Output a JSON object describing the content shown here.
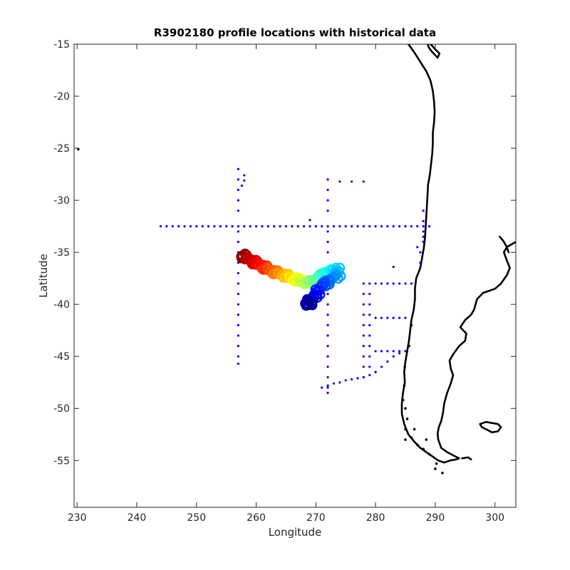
{
  "chart_data": {
    "type": "scatter",
    "title": "R3902180 profile locations with historical data",
    "xlabel": "Longitude",
    "ylabel": "Latitude",
    "xlim": [
      229.5,
      303.5
    ],
    "ylim": [
      -59.5,
      -15
    ],
    "xticks": [
      230,
      240,
      250,
      260,
      270,
      280,
      290,
      300
    ],
    "yticks": [
      -15,
      -20,
      -25,
      -30,
      -35,
      -40,
      -45,
      -50,
      -55
    ],
    "grid": false,
    "colors": {
      "historical": "#0000ff",
      "coast": "#000000",
      "axes": "#262626"
    },
    "historical_points": [
      [
        244,
        -32.5
      ],
      [
        245,
        -32.5
      ],
      [
        246,
        -32.5
      ],
      [
        247,
        -32.5
      ],
      [
        248,
        -32.5
      ],
      [
        249,
        -32.5
      ],
      [
        250,
        -32.5
      ],
      [
        251,
        -32.5
      ],
      [
        252,
        -32.5
      ],
      [
        253,
        -32.5
      ],
      [
        254,
        -32.5
      ],
      [
        255,
        -32.5
      ],
      [
        256,
        -32.5
      ],
      [
        257,
        -32.5
      ],
      [
        258,
        -32.5
      ],
      [
        259,
        -32.5
      ],
      [
        260,
        -32.5
      ],
      [
        261,
        -32.5
      ],
      [
        262,
        -32.5
      ],
      [
        263,
        -32.5
      ],
      [
        264,
        -32.5
      ],
      [
        265,
        -32.5
      ],
      [
        266,
        -32.5
      ],
      [
        267,
        -32.5
      ],
      [
        268,
        -32.5
      ],
      [
        269,
        -32.5
      ],
      [
        270,
        -32.5
      ],
      [
        271,
        -32.5
      ],
      [
        272,
        -32.5
      ],
      [
        273,
        -32.5
      ],
      [
        274,
        -32.5
      ],
      [
        275,
        -32.5
      ],
      [
        276,
        -32.5
      ],
      [
        277,
        -32.5
      ],
      [
        278,
        -32.5
      ],
      [
        279,
        -32.5
      ],
      [
        280,
        -32.5
      ],
      [
        281,
        -32.5
      ],
      [
        282,
        -32.5
      ],
      [
        283,
        -32.5
      ],
      [
        284,
        -32.5
      ],
      [
        285,
        -32.5
      ],
      [
        286,
        -32.5
      ],
      [
        287,
        -32.5
      ],
      [
        288,
        -32.5
      ],
      [
        289,
        -32.5
      ],
      [
        257,
        -27
      ],
      [
        257,
        -28
      ],
      [
        257,
        -29
      ],
      [
        257,
        -30
      ],
      [
        257,
        -31
      ],
      [
        257,
        -33
      ],
      [
        257,
        -34
      ],
      [
        257,
        -35
      ],
      [
        257,
        -36
      ],
      [
        257,
        -37
      ],
      [
        257,
        -38
      ],
      [
        257,
        -39
      ],
      [
        257,
        -40
      ],
      [
        257,
        -41
      ],
      [
        257,
        -42
      ],
      [
        257,
        -43
      ],
      [
        257,
        -44
      ],
      [
        257,
        -45
      ],
      [
        257,
        -45.7
      ],
      [
        258,
        -27.6
      ],
      [
        258,
        -28.1
      ],
      [
        257.6,
        -28.6
      ],
      [
        269,
        -31.9
      ],
      [
        272,
        -28
      ],
      [
        272,
        -29
      ],
      [
        272,
        -30
      ],
      [
        272,
        -31
      ],
      [
        272,
        -33
      ],
      [
        272,
        -34
      ],
      [
        272,
        -35
      ],
      [
        272,
        -38
      ],
      [
        272,
        -39
      ],
      [
        272,
        -40
      ],
      [
        272,
        -41
      ],
      [
        272,
        -42
      ],
      [
        272,
        -43
      ],
      [
        272,
        -44
      ],
      [
        272,
        -45
      ],
      [
        272,
        -46
      ],
      [
        272,
        -47
      ],
      [
        272,
        -48
      ],
      [
        272,
        -48.5
      ],
      [
        274,
        -28.2
      ],
      [
        276,
        -28.2
      ],
      [
        278,
        -28.2
      ],
      [
        278,
        -38
      ],
      [
        278,
        -39
      ],
      [
        278,
        -40
      ],
      [
        278,
        -41
      ],
      [
        278,
        -42
      ],
      [
        278,
        -43
      ],
      [
        278,
        -44
      ],
      [
        278,
        -45
      ],
      [
        278,
        -46
      ],
      [
        278,
        -47
      ],
      [
        279,
        -38
      ],
      [
        280,
        -38
      ],
      [
        281,
        -38
      ],
      [
        282,
        -38
      ],
      [
        283,
        -38
      ],
      [
        284,
        -38
      ],
      [
        285,
        -38
      ],
      [
        286,
        -38
      ],
      [
        279,
        -39
      ],
      [
        279,
        -40
      ],
      [
        279,
        -41
      ],
      [
        279,
        -42
      ],
      [
        279,
        -43
      ],
      [
        279,
        -44
      ],
      [
        279,
        -45
      ],
      [
        279,
        -46
      ],
      [
        280,
        -41.3
      ],
      [
        281,
        -41.3
      ],
      [
        282,
        -41.3
      ],
      [
        283,
        -41.3
      ],
      [
        284,
        -41.3
      ],
      [
        285,
        -41.3
      ],
      [
        280,
        -44.5
      ],
      [
        281,
        -44.5
      ],
      [
        282,
        -44.5
      ],
      [
        283,
        -44.5
      ],
      [
        284,
        -44.5
      ],
      [
        285,
        -44.5
      ],
      [
        280,
        -46.5
      ],
      [
        281,
        -46
      ],
      [
        282,
        -45.5
      ],
      [
        283,
        -45
      ],
      [
        284,
        -44.7
      ],
      [
        275,
        -47.3
      ],
      [
        276,
        -47.2
      ],
      [
        277,
        -47.1
      ],
      [
        278,
        -47
      ],
      [
        279,
        -46.8
      ],
      [
        280,
        -46.5
      ],
      [
        271,
        -48
      ],
      [
        272,
        -47.8
      ],
      [
        273,
        -47.6
      ],
      [
        274,
        -47.5
      ],
      [
        283,
        -36.4
      ],
      [
        288,
        -31
      ],
      [
        288,
        -32
      ],
      [
        288,
        -33
      ],
      [
        288,
        -34
      ],
      [
        287.5,
        -35
      ],
      [
        287.5,
        -36
      ],
      [
        288,
        -33.5
      ],
      [
        287,
        -34.5
      ]
    ],
    "profile_track": [
      [
        257.5,
        -35.2
      ],
      [
        258.5,
        -35.6
      ],
      [
        259.5,
        -35.9
      ],
      [
        260.5,
        -36.2
      ],
      [
        261.5,
        -36.5
      ],
      [
        262.5,
        -36.8
      ],
      [
        263.5,
        -37.0
      ],
      [
        264.5,
        -37.2
      ],
      [
        265.5,
        -37.4
      ],
      [
        266.5,
        -37.6
      ],
      [
        267.5,
        -37.8
      ],
      [
        268.5,
        -37.9
      ],
      [
        269.5,
        -37.8
      ],
      [
        270.5,
        -37.4
      ],
      [
        271.5,
        -37.0
      ],
      [
        272.5,
        -36.8
      ],
      [
        273.5,
        -36.6
      ],
      [
        273.8,
        -37.2
      ],
      [
        272.5,
        -37.6
      ],
      [
        271.5,
        -38.0
      ],
      [
        270.5,
        -38.5
      ],
      [
        270.0,
        -39.2
      ],
      [
        269.0,
        -39.6
      ],
      [
        268.5,
        -40.0
      ],
      [
        269.5,
        -39.8
      ]
    ],
    "coast_south_america": [
      [
        285.5,
        -15
      ],
      [
        286.5,
        -15.8
      ],
      [
        287.5,
        -16.7
      ],
      [
        288.5,
        -17.6
      ],
      [
        289.2,
        -18.5
      ],
      [
        289.6,
        -19.5
      ],
      [
        289.8,
        -20.5
      ],
      [
        289.9,
        -21.5
      ],
      [
        289.8,
        -22.5
      ],
      [
        289.6,
        -23.5
      ],
      [
        289.6,
        -24.5
      ],
      [
        289.5,
        -25.5
      ],
      [
        289.3,
        -26.5
      ],
      [
        289.1,
        -27.5
      ],
      [
        288.8,
        -28.5
      ],
      [
        288.7,
        -29.5
      ],
      [
        288.6,
        -30.5
      ],
      [
        288.5,
        -31.5
      ],
      [
        288.4,
        -32.5
      ],
      [
        288.3,
        -33.5
      ],
      [
        288.1,
        -34.5
      ],
      [
        287.8,
        -35.5
      ],
      [
        287.5,
        -36.5
      ],
      [
        286.8,
        -37.5
      ],
      [
        286.6,
        -38.5
      ],
      [
        286.6,
        -39.5
      ],
      [
        286.4,
        -40.5
      ],
      [
        286.0,
        -41.5
      ],
      [
        285.8,
        -42.5
      ],
      [
        285.6,
        -43.5
      ],
      [
        285.3,
        -44.5
      ],
      [
        285.0,
        -45.5
      ],
      [
        284.8,
        -46.5
      ],
      [
        284.9,
        -47.5
      ],
      [
        284.6,
        -48.5
      ],
      [
        284.4,
        -49.5
      ],
      [
        284.4,
        -50.5
      ],
      [
        284.8,
        -51.5
      ],
      [
        285.5,
        -52.5
      ],
      [
        286.5,
        -53.2
      ],
      [
        287.5,
        -53.8
      ],
      [
        288.5,
        -54.2
      ],
      [
        289.5,
        -54.6
      ],
      [
        290.5,
        -55.0
      ],
      [
        291.5,
        -55.2
      ],
      [
        292.5,
        -55.0
      ],
      [
        293.5,
        -54.9
      ],
      [
        294.0,
        -54.8
      ],
      [
        293.0,
        -54.5
      ],
      [
        292.0,
        -54.2
      ],
      [
        291.0,
        -53.8
      ],
      [
        290.5,
        -53.0
      ],
      [
        290.4,
        -52.4
      ],
      [
        290.6,
        -51.8
      ],
      [
        291.0,
        -51.2
      ],
      [
        291.3,
        -50.4
      ],
      [
        291.5,
        -49.5
      ],
      [
        292.0,
        -48.5
      ],
      [
        292.6,
        -47.6
      ],
      [
        293.0,
        -46.8
      ],
      [
        292.6,
        -46.2
      ],
      [
        292.4,
        -45.4
      ],
      [
        293.0,
        -44.8
      ],
      [
        294.0,
        -44.0
      ],
      [
        295.0,
        -43.5
      ],
      [
        295.2,
        -42.8
      ],
      [
        294.2,
        -42.2
      ],
      [
        295.0,
        -41.5
      ],
      [
        296.0,
        -41.0
      ],
      [
        296.5,
        -40.5
      ],
      [
        297.0,
        -39.5
      ],
      [
        298.0,
        -38.9
      ],
      [
        300.0,
        -38.5
      ],
      [
        301.0,
        -38.0
      ],
      [
        302.0,
        -37.2
      ],
      [
        302.5,
        -36.5
      ],
      [
        302.0,
        -35.8
      ],
      [
        301.5,
        -35.0
      ],
      [
        302.0,
        -34.5
      ],
      [
        303.5,
        -34.0
      ]
    ],
    "coast_islands": [
      [
        [
          300.8,
          -33.5
        ],
        [
          301.4,
          -33.9
        ],
        [
          301.9,
          -34.4
        ],
        [
          302.3,
          -35.0
        ]
      ],
      [
        [
          288.5,
          -14.6
        ],
        [
          288.9,
          -15.3
        ],
        [
          289.4,
          -15.7
        ],
        [
          289.9,
          -16.0
        ],
        [
          290.4,
          -16.3
        ],
        [
          290.7,
          -15.9
        ],
        [
          290.0,
          -15.5
        ],
        [
          289.4,
          -15.1
        ],
        [
          288.9,
          -14.9
        ]
      ],
      [
        [
          297.5,
          -51.5
        ],
        [
          298.5,
          -51.3
        ],
        [
          299.5,
          -51.4
        ],
        [
          300.5,
          -51.5
        ],
        [
          301.0,
          -51.8
        ],
        [
          300.5,
          -52.2
        ],
        [
          299.5,
          -52.3
        ],
        [
          298.5,
          -52.0
        ],
        [
          297.8,
          -51.8
        ],
        [
          297.5,
          -51.5
        ]
      ],
      [
        [
          294.5,
          -54.8
        ],
        [
          295.5,
          -54.7
        ],
        [
          296.0,
          -54.9
        ]
      ]
    ],
    "coast_dots": [
      [
        230.2,
        -25.1
      ],
      [
        285.0,
        -50.0
      ],
      [
        285.3,
        -51.0
      ],
      [
        285.0,
        -52.0
      ],
      [
        286.0,
        -52.8
      ],
      [
        287.0,
        -53.5
      ],
      [
        288.0,
        -53.9
      ],
      [
        289.0,
        -54.4
      ],
      [
        290.2,
        -55.3
      ],
      [
        291.2,
        -56.2
      ],
      [
        284.6,
        -49.2
      ],
      [
        284.9,
        -46.0
      ],
      [
        285.6,
        -44.0
      ],
      [
        286.0,
        -42.0
      ],
      [
        284.8,
        -47.8
      ],
      [
        285.0,
        -53.0
      ],
      [
        286.5,
        -52.0
      ],
      [
        288.5,
        -53.0
      ],
      [
        290.0,
        -55.8
      ]
    ]
  }
}
